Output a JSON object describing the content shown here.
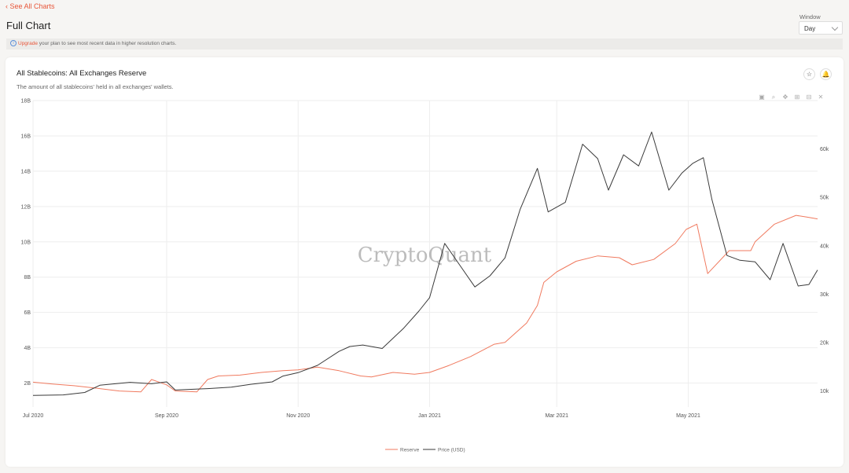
{
  "nav": {
    "back_label": "See All Charts"
  },
  "page": {
    "title": "Full Chart"
  },
  "window": {
    "label": "Window",
    "value": "Day"
  },
  "notice": {
    "icon": "info-icon",
    "link": "Upgrade",
    "text": " your plan to see most recent data in higher resolution charts."
  },
  "card": {
    "title": "All Stablecoins: All Exchanges Reserve",
    "subtitle": "The amount of all stablecoins' held in all exchanges' wallets.",
    "star_icon": "star-icon",
    "bell_icon": "bell-icon",
    "toolbar_icons": [
      "camera-icon",
      "zoom-icon",
      "pan-icon",
      "zoom-in-icon",
      "zoom-out-icon",
      "reset-axes-icon"
    ]
  },
  "watermark": "CryptoQuant",
  "chart_data": {
    "type": "line",
    "title": "All Stablecoins: All Exchanges Reserve",
    "x_range": [
      "2020-07-01",
      "2021-06-30"
    ],
    "x_ticks": [
      "Jul 2020",
      "Sep 2020",
      "Nov 2020",
      "Jan 2021",
      "Mar 2021",
      "May 2021"
    ],
    "y_left": {
      "range": [
        1000000000,
        18000000000
      ],
      "ticks": [
        "2B",
        "4B",
        "6B",
        "8B",
        "10B",
        "12B",
        "14B",
        "16B",
        "18B"
      ]
    },
    "y_right": {
      "range": [
        8000,
        70000
      ],
      "ticks": [
        "10k",
        "20k",
        "30k",
        "40k",
        "50k",
        "60k"
      ]
    },
    "grid": true,
    "legend_position": "bottom-center",
    "colors": {
      "reserve": "#f07a5f",
      "price": "#3a3a3a"
    },
    "series": [
      {
        "name": "Reserve",
        "axis": "left",
        "points": [
          [
            "2020-07-01",
            2.05
          ],
          [
            "2020-07-10",
            1.95
          ],
          [
            "2020-07-20",
            1.85
          ],
          [
            "2020-07-31",
            1.7
          ],
          [
            "2020-08-10",
            1.55
          ],
          [
            "2020-08-20",
            1.5
          ],
          [
            "2020-08-25",
            2.2
          ],
          [
            "2020-09-01",
            1.9
          ],
          [
            "2020-09-05",
            1.55
          ],
          [
            "2020-09-15",
            1.5
          ],
          [
            "2020-09-20",
            2.2
          ],
          [
            "2020-09-25",
            2.4
          ],
          [
            "2020-10-05",
            2.45
          ],
          [
            "2020-10-15",
            2.6
          ],
          [
            "2020-10-25",
            2.7
          ],
          [
            "2020-11-01",
            2.75
          ],
          [
            "2020-11-10",
            2.9
          ],
          [
            "2020-11-20",
            2.7
          ],
          [
            "2020-11-30",
            2.4
          ],
          [
            "2020-12-05",
            2.35
          ],
          [
            "2020-12-15",
            2.6
          ],
          [
            "2020-12-25",
            2.5
          ],
          [
            "2021-01-01",
            2.6
          ],
          [
            "2021-01-10",
            3.0
          ],
          [
            "2021-01-20",
            3.5
          ],
          [
            "2021-01-31",
            4.2
          ],
          [
            "2021-02-05",
            4.3
          ],
          [
            "2021-02-15",
            5.4
          ],
          [
            "2021-02-20",
            6.4
          ],
          [
            "2021-02-23",
            7.7
          ],
          [
            "2021-03-01",
            8.3
          ],
          [
            "2021-03-10",
            8.9
          ],
          [
            "2021-03-20",
            9.2
          ],
          [
            "2021-03-30",
            9.1
          ],
          [
            "2021-04-05",
            8.7
          ],
          [
            "2021-04-15",
            9.0
          ],
          [
            "2021-04-25",
            9.9
          ],
          [
            "2021-04-30",
            10.7
          ],
          [
            "2021-05-05",
            11.0
          ],
          [
            "2021-05-10",
            8.2
          ],
          [
            "2021-05-20",
            9.5
          ],
          [
            "2021-05-30",
            9.5
          ],
          [
            "2021-06-01",
            10.0
          ],
          [
            "2021-06-10",
            11.0
          ],
          [
            "2021-06-20",
            11.5
          ],
          [
            "2021-06-25",
            11.4
          ],
          [
            "2021-06-30",
            11.3
          ]
        ]
      },
      {
        "name": "Price (USD)",
        "axis": "right",
        "points": [
          [
            "2020-07-01",
            9100
          ],
          [
            "2020-07-15",
            9200
          ],
          [
            "2020-07-25",
            9700
          ],
          [
            "2020-08-01",
            11200
          ],
          [
            "2020-08-15",
            11800
          ],
          [
            "2020-08-25",
            11500
          ],
          [
            "2020-09-01",
            11900
          ],
          [
            "2020-09-05",
            10200
          ],
          [
            "2020-09-20",
            10500
          ],
          [
            "2020-10-01",
            10800
          ],
          [
            "2020-10-10",
            11400
          ],
          [
            "2020-10-20",
            11900
          ],
          [
            "2020-10-25",
            13100
          ],
          [
            "2020-11-01",
            13800
          ],
          [
            "2020-11-10",
            15300
          ],
          [
            "2020-11-20",
            18200
          ],
          [
            "2020-11-25",
            19200
          ],
          [
            "2020-12-01",
            19500
          ],
          [
            "2020-12-10",
            18800
          ],
          [
            "2020-12-20",
            23000
          ],
          [
            "2020-12-27",
            26500
          ],
          [
            "2021-01-01",
            29300
          ],
          [
            "2021-01-08",
            40500
          ],
          [
            "2021-01-15",
            36000
          ],
          [
            "2021-01-22",
            31500
          ],
          [
            "2021-01-29",
            33800
          ],
          [
            "2021-02-05",
            37500
          ],
          [
            "2021-02-12",
            47500
          ],
          [
            "2021-02-20",
            56000
          ],
          [
            "2021-02-25",
            47000
          ],
          [
            "2021-03-05",
            49000
          ],
          [
            "2021-03-13",
            61000
          ],
          [
            "2021-03-20",
            58000
          ],
          [
            "2021-03-25",
            51500
          ],
          [
            "2021-04-01",
            58800
          ],
          [
            "2021-04-08",
            56500
          ],
          [
            "2021-04-14",
            63500
          ],
          [
            "2021-04-22",
            51500
          ],
          [
            "2021-04-28",
            55000
          ],
          [
            "2021-05-03",
            57000
          ],
          [
            "2021-05-08",
            58200
          ],
          [
            "2021-05-12",
            49500
          ],
          [
            "2021-05-19",
            38000
          ],
          [
            "2021-05-25",
            37000
          ],
          [
            "2021-06-01",
            36700
          ],
          [
            "2021-06-08",
            33000
          ],
          [
            "2021-06-14",
            40500
          ],
          [
            "2021-06-21",
            31700
          ],
          [
            "2021-06-26",
            32000
          ],
          [
            "2021-06-30",
            35000
          ]
        ]
      }
    ]
  }
}
